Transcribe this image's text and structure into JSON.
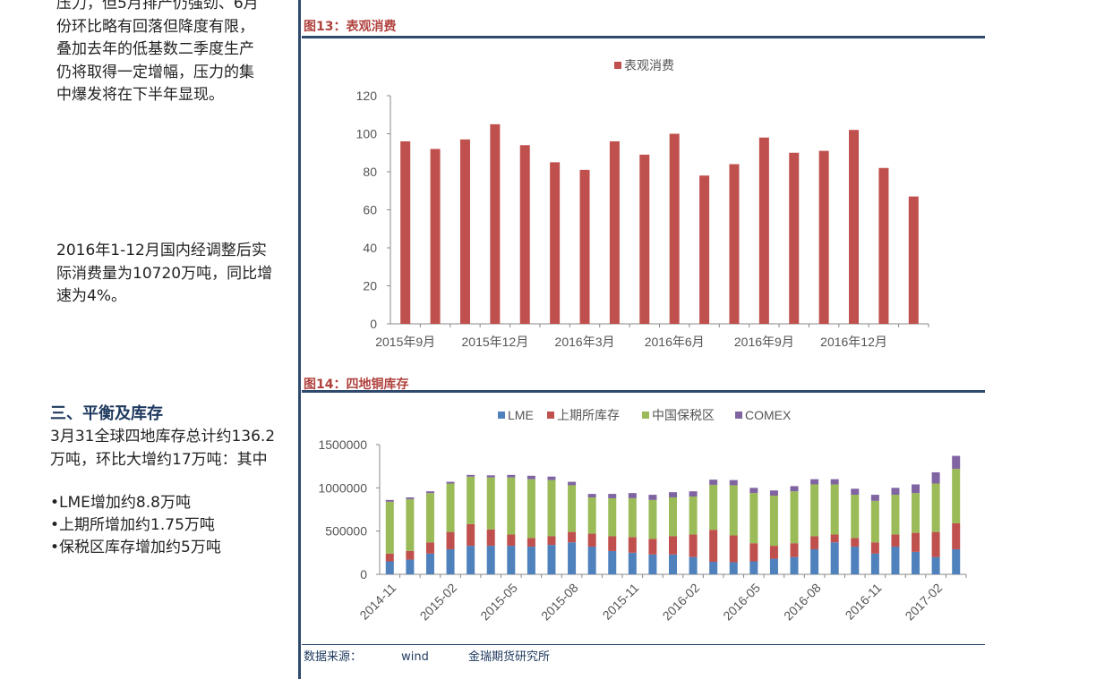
{
  "left": {
    "para1_lines": [
      "压力，但5月排产仍强劲、6月",
      "份环比略有回落但降度有限，",
      "叠加去年的低基数二季度生产",
      "仍将取得一定增幅，压力的集",
      "中爆发将在下半年显现。"
    ],
    "para2_lines": [
      "2016年1-12月国内经调整后实",
      "际消费量为10720万吨，同比增",
      "速为4%。"
    ],
    "section_heading": "三、平衡及库存",
    "para3_lines": [
      "3月31全球四地库存总计约136.2",
      "万吨，环比大增约17万吨：其中"
    ],
    "bullets": [
      "•LME增加约8.8万吨",
      "•上期所增加约1.75万吨",
      "•保税区库存增加约5万吨"
    ]
  },
  "fig13": {
    "title": "图13：表观消费"
  },
  "fig14": {
    "title": "图14：四地铜库存"
  },
  "source": {
    "label": "数据来源：",
    "wind": "wind",
    "org": "金瑞期货研究所"
  },
  "colors": {
    "red": "#c0504d",
    "blue": "#4f81bd",
    "green": "#9bbb59",
    "purple": "#8064a2",
    "navy": "#2f4a6d"
  },
  "chart_data": [
    {
      "type": "bar",
      "title": "",
      "legend": [
        "表观消费"
      ],
      "legend_position": "top",
      "categories": [
        "2015年9月",
        "2015年10月",
        "2015年11月",
        "2015年12月",
        "2016年1月",
        "2016年2月",
        "2016年3月",
        "2016年4月",
        "2016年5月",
        "2016年6月",
        "2016年7月",
        "2016年8月",
        "2016年9月",
        "2016年10月",
        "2016年11月",
        "2016年12月",
        "2017年1月",
        "2017年2月"
      ],
      "tick_labels": [
        "2015年9月",
        "2015年12月",
        "2016年3月",
        "2016年6月",
        "2016年9月",
        "2016年12月"
      ],
      "series": [
        {
          "name": "表观消费",
          "values": [
            96,
            92,
            97,
            105,
            94,
            85,
            81,
            96,
            89,
            100,
            78,
            84,
            98,
            90,
            91,
            102,
            82,
            67
          ]
        }
      ],
      "ylim": [
        0,
        120
      ],
      "yticks": [
        "0",
        "20",
        "40",
        "60",
        "80",
        "100",
        "120"
      ],
      "grid": false
    },
    {
      "type": "bar",
      "stacked": true,
      "title": "",
      "legend_position": "top",
      "tick_labels": [
        "2014-11",
        "2015-02",
        "2015-05",
        "2015-08",
        "2015-11",
        "2016-02",
        "2016-05",
        "2016-08",
        "2016-11",
        "2017-02"
      ],
      "series": [
        {
          "name": "LME",
          "values": [
            150000,
            170000,
            240000,
            290000,
            330000,
            330000,
            330000,
            320000,
            340000,
            370000,
            320000,
            270000,
            250000,
            230000,
            230000,
            200000,
            145000,
            140000,
            150000,
            180000,
            200000,
            290000,
            370000,
            320000,
            240000,
            320000,
            260000,
            200000,
            290000
          ]
        },
        {
          "name": "上期所库存",
          "values": [
            90000,
            100000,
            130000,
            200000,
            250000,
            190000,
            130000,
            100000,
            100000,
            120000,
            150000,
            170000,
            180000,
            180000,
            210000,
            260000,
            370000,
            310000,
            210000,
            150000,
            160000,
            150000,
            90000,
            100000,
            130000,
            140000,
            220000,
            290000,
            300000
          ]
        },
        {
          "name": "中国保税区",
          "values": [
            600000,
            600000,
            570000,
            560000,
            550000,
            600000,
            660000,
            680000,
            650000,
            540000,
            420000,
            440000,
            450000,
            450000,
            450000,
            440000,
            520000,
            580000,
            580000,
            580000,
            600000,
            600000,
            580000,
            500000,
            480000,
            460000,
            460000,
            560000,
            630000
          ]
        },
        {
          "name": "COMEX",
          "values": [
            20000,
            20000,
            20000,
            20000,
            20000,
            25000,
            30000,
            40000,
            40000,
            40000,
            40000,
            50000,
            60000,
            60000,
            60000,
            60000,
            60000,
            60000,
            60000,
            60000,
            60000,
            60000,
            60000,
            70000,
            70000,
            80000,
            100000,
            130000,
            150000
          ]
        }
      ],
      "ylim": [
        0,
        1500000
      ],
      "yticks": [
        "0",
        "500000",
        "1000000",
        "1500000"
      ],
      "grid": false
    }
  ]
}
